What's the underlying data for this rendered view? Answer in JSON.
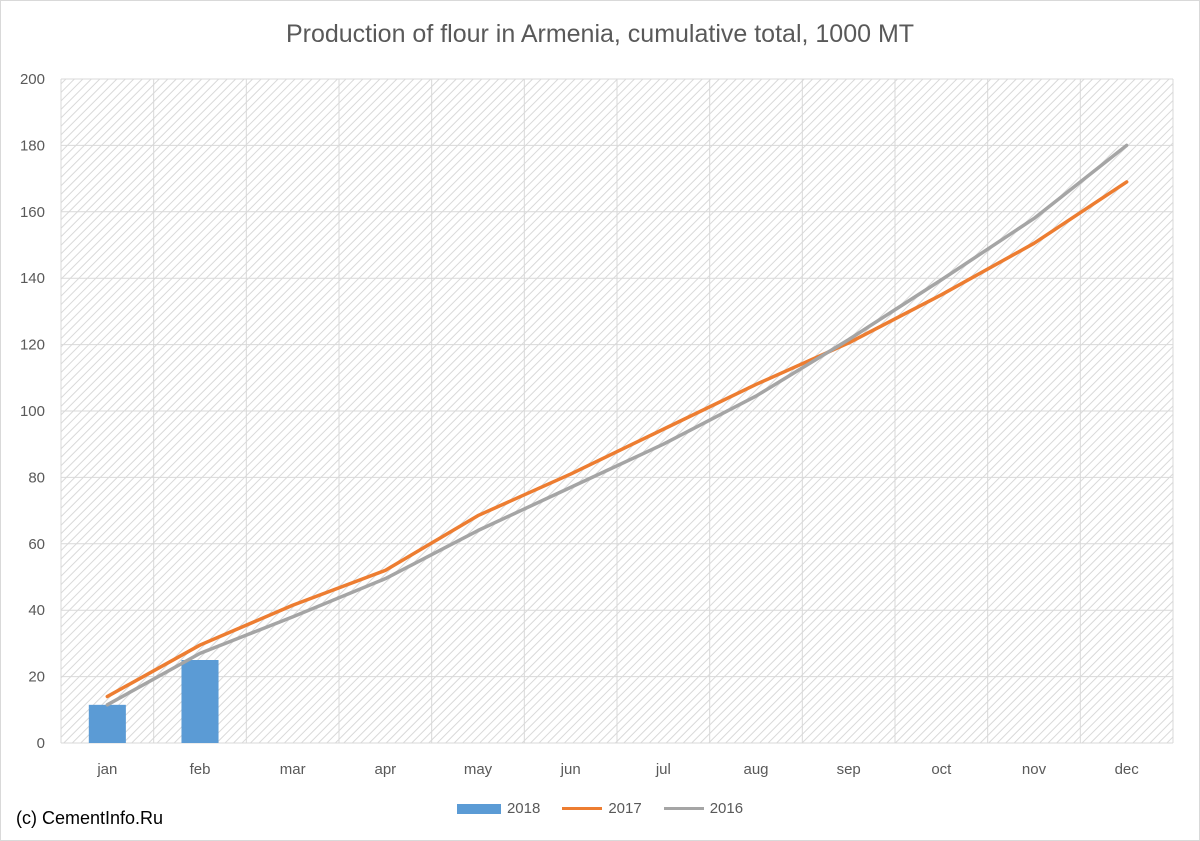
{
  "chart_data": {
    "type": "bar+line",
    "title": "Production of flour in Armenia, cumulative total, 1000 MT",
    "categories": [
      "jan",
      "feb",
      "mar",
      "apr",
      "may",
      "jun",
      "jul",
      "aug",
      "sep",
      "oct",
      "nov",
      "dec"
    ],
    "ylim": [
      0,
      200
    ],
    "yticks": [
      "0",
      "20",
      "40",
      "60",
      "80",
      "100",
      "120",
      "140",
      "160",
      "180",
      "200"
    ],
    "grid": true,
    "legend_position": "bottom",
    "series": [
      {
        "name": "2018",
        "kind": "bar",
        "color": "#5b9bd5",
        "values": [
          11.5,
          25,
          null,
          null,
          null,
          null,
          null,
          null,
          null,
          null,
          null,
          null
        ]
      },
      {
        "name": "2017",
        "kind": "line",
        "color": "#ed7d31",
        "values": [
          14,
          29.5,
          41.5,
          52,
          68.5,
          81,
          94.5,
          108,
          120.5,
          135,
          150.5,
          169
        ]
      },
      {
        "name": "2016",
        "kind": "line",
        "color": "#a5a5a5",
        "values": [
          11.5,
          27,
          38,
          49.5,
          64,
          77,
          90,
          104.5,
          121.5,
          139.5,
          158,
          180
        ]
      }
    ]
  },
  "credit": "(c) CementInfo.Ru"
}
